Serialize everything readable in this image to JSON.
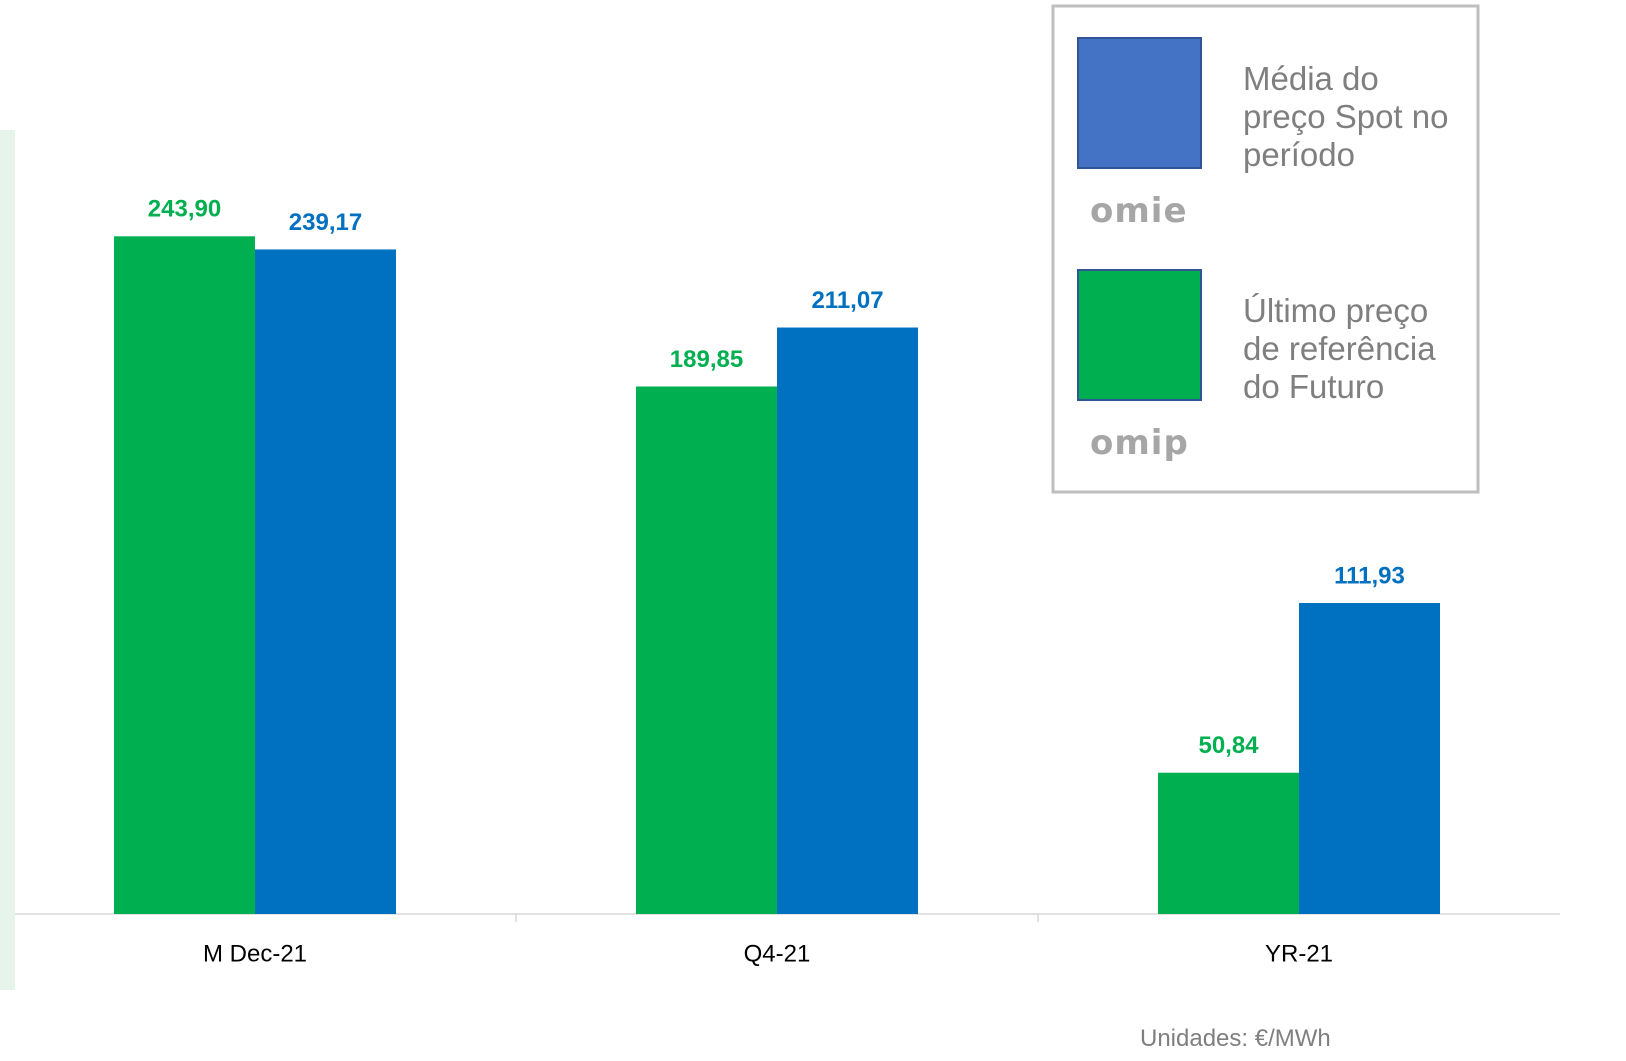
{
  "chart_data": {
    "type": "bar",
    "categories": [
      "M Dec-21",
      "Q4-21",
      "YR-21"
    ],
    "series": [
      {
        "name": "Último preço de referência do Futuro",
        "color": "#00b050",
        "values": [
          243.9,
          189.85,
          50.84
        ],
        "value_labels": [
          "243,90",
          "189,85",
          "50,84"
        ]
      },
      {
        "name": "Média do preço Spot no período",
        "color": "#0070c0",
        "values": [
          239.17,
          211.07,
          111.93
        ],
        "value_labels": [
          "239,17",
          "211,07",
          "111,93"
        ]
      }
    ],
    "legend_order": [
      1,
      0
    ],
    "legend_colors": [
      "#4472c4",
      "#00b050"
    ],
    "legend_logos": [
      "omie",
      "omip"
    ],
    "ylim": [
      0,
      280
    ],
    "note": "Unidades: €/MWh"
  }
}
